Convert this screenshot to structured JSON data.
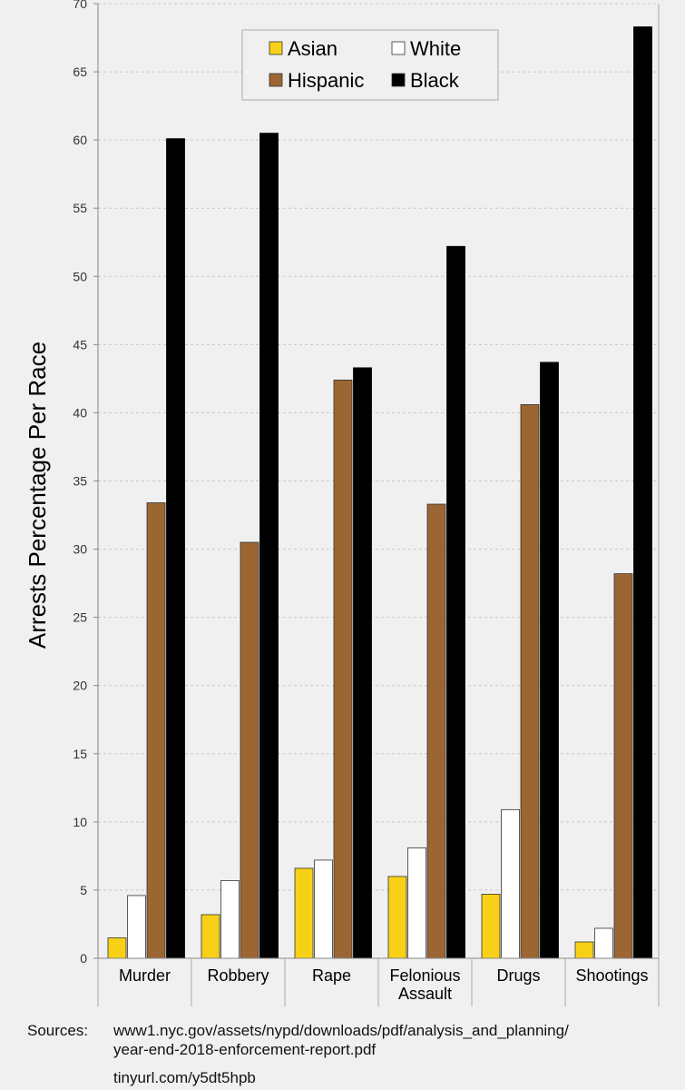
{
  "chart_data": {
    "type": "bar",
    "ylabel": "Arrests Percentage Per Race",
    "xlabel": "",
    "ylim": [
      0,
      70
    ],
    "yticks": [
      0,
      5,
      10,
      15,
      20,
      25,
      30,
      35,
      40,
      45,
      50,
      55,
      60,
      65,
      70
    ],
    "grid": true,
    "legend_position": "top-center",
    "categories": [
      [
        "Murder"
      ],
      [
        "Robbery"
      ],
      [
        "Rape"
      ],
      [
        "Felonious",
        "Assault"
      ],
      [
        "Drugs"
      ],
      [
        "Shootings"
      ]
    ],
    "series": [
      {
        "name": "Asian",
        "color": "#f7d117",
        "values": [
          1.5,
          3.2,
          6.6,
          6.0,
          4.7,
          1.2
        ]
      },
      {
        "name": "White",
        "color": "#ffffff",
        "values": [
          4.6,
          5.7,
          7.2,
          8.1,
          10.9,
          2.2
        ]
      },
      {
        "name": "Hispanic",
        "color": "#9c6633",
        "values": [
          33.4,
          30.5,
          42.4,
          33.3,
          40.6,
          28.2
        ]
      },
      {
        "name": "Black",
        "color": "#000000",
        "values": [
          60.1,
          60.5,
          43.3,
          52.2,
          43.7,
          68.3
        ]
      }
    ]
  },
  "sources": {
    "label": "Sources:",
    "line1": "www1.nyc.gov/assets/nypd/downloads/pdf/analysis_and_planning/",
    "line2": "year-end-2018-enforcement-report.pdf",
    "line3": "tinyurl.com/y5dt5hpb"
  }
}
